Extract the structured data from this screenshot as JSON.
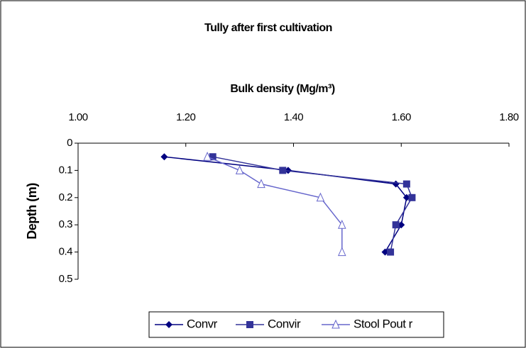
{
  "chart_data": {
    "type": "depth-profile",
    "title": "Tully after first cultivation",
    "x_label": "Bulk density (Mg/m³)",
    "y_label": "Depth (m)",
    "y": [
      0.05,
      0.1,
      0.15,
      0.2,
      0.3,
      0.4
    ],
    "series": [
      {
        "name": "Convr",
        "color": "#000080",
        "marker": "diamond",
        "x": [
          1.16,
          1.39,
          1.59,
          1.61,
          1.6,
          1.57
        ]
      },
      {
        "name": "Convir",
        "color": "#333399",
        "marker": "square",
        "x": [
          1.25,
          1.38,
          1.61,
          1.62,
          1.59,
          1.58
        ]
      },
      {
        "name": "Stool Pout r",
        "color": "#6666cc",
        "marker": "triangle",
        "x": [
          1.24,
          1.3,
          1.34,
          1.45,
          1.49,
          1.49
        ]
      }
    ],
    "xlim": [
      1.0,
      1.8
    ],
    "xticks": [
      {
        "value": 1.0,
        "label": "1.00"
      },
      {
        "value": 1.2,
        "label": "1.20"
      },
      {
        "value": 1.4,
        "label": "1.40"
      },
      {
        "value": 1.6,
        "label": "1.60"
      },
      {
        "value": 1.8,
        "label": "1.80"
      }
    ],
    "ylim": [
      0,
      0.5
    ],
    "yticks": [
      0,
      0.1,
      0.2,
      0.3,
      0.4,
      0.5
    ],
    "y_inverted": true,
    "x_axis_position": "top",
    "legend": "bottom"
  }
}
